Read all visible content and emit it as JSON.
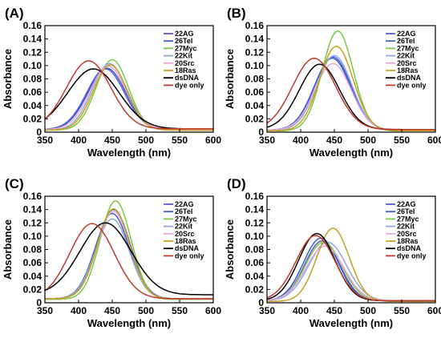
{
  "chart_data": [
    {
      "panel_label": "(A)",
      "type": "line",
      "xlabel": "Wavelength (nm)",
      "ylabel": "Absorbance",
      "xlim": [
        350,
        600
      ],
      "ylim": [
        0,
        0.16
      ],
      "xticks": [
        "350",
        "400",
        "450",
        "500",
        "550",
        "600"
      ],
      "yticks": [
        "0",
        "0.02",
        "0.04",
        "0.06",
        "0.08",
        "0.10",
        "0.12",
        "0.14",
        "0.16"
      ],
      "legend_position": "top-right",
      "series": [
        {
          "name": "22AG",
          "color": "#5b5bd6",
          "peak_x": 440,
          "peak_y": 0.091,
          "width": 28,
          "base_y": 0.004
        },
        {
          "name": "26Tel",
          "color": "#3a5fcd",
          "peak_x": 442,
          "peak_y": 0.092,
          "width": 28,
          "base_y": 0.004
        },
        {
          "name": "27Myc",
          "color": "#7ac943",
          "peak_x": 450,
          "peak_y": 0.106,
          "width": 24,
          "base_y": 0.003
        },
        {
          "name": "22Kit",
          "color": "#8fa8e0",
          "peak_x": 446,
          "peak_y": 0.1,
          "width": 26,
          "base_y": 0.003
        },
        {
          "name": "20Src",
          "color": "#e6a8d8",
          "peak_x": 444,
          "peak_y": 0.095,
          "width": 27,
          "base_y": 0.004
        },
        {
          "name": "18Ras",
          "color": "#c8a020",
          "peak_x": 447,
          "peak_y": 0.098,
          "width": 25,
          "base_y": 0.003
        },
        {
          "name": "dsDNA",
          "color": "#000000",
          "peak_x": 422,
          "peak_y": 0.09,
          "width": 38,
          "base_y": 0.005
        },
        {
          "name": "dye only",
          "color": "#c0392b",
          "peak_x": 415,
          "peak_y": 0.102,
          "width": 33,
          "base_y": 0.005
        }
      ]
    },
    {
      "panel_label": "(B)",
      "type": "line",
      "xlabel": "Wavelength (nm)",
      "ylabel": "Absorbance",
      "xlim": [
        350,
        600
      ],
      "ylim": [
        0,
        0.16
      ],
      "xticks": [
        "350",
        "400",
        "450",
        "500",
        "550",
        "600"
      ],
      "yticks": [
        "0",
        "0.02",
        "0.04",
        "0.06",
        "0.08",
        "0.10",
        "0.12",
        "0.14",
        "0.16"
      ],
      "legend_position": "top-right",
      "series": [
        {
          "name": "22AG",
          "color": "#5b5bd6",
          "peak_x": 448,
          "peak_y": 0.11,
          "width": 27,
          "base_y": 0.003
        },
        {
          "name": "26Tel",
          "color": "#3a5fcd",
          "peak_x": 447,
          "peak_y": 0.108,
          "width": 27,
          "base_y": 0.003
        },
        {
          "name": "27Myc",
          "color": "#7ac943",
          "peak_x": 455,
          "peak_y": 0.15,
          "width": 23,
          "base_y": 0.002
        },
        {
          "name": "22Kit",
          "color": "#8fa8e0",
          "peak_x": 450,
          "peak_y": 0.112,
          "width": 26,
          "base_y": 0.003
        },
        {
          "name": "20Src",
          "color": "#e6a8d8",
          "peak_x": 448,
          "peak_y": 0.1,
          "width": 27,
          "base_y": 0.003
        },
        {
          "name": "18Ras",
          "color": "#c8a020",
          "peak_x": 453,
          "peak_y": 0.127,
          "width": 25,
          "base_y": 0.002
        },
        {
          "name": "dsDNA",
          "color": "#000000",
          "peak_x": 428,
          "peak_y": 0.098,
          "width": 30,
          "base_y": 0.004
        },
        {
          "name": "dye only",
          "color": "#c0392b",
          "peak_x": 420,
          "peak_y": 0.107,
          "width": 32,
          "base_y": 0.004
        }
      ]
    },
    {
      "panel_label": "(C)",
      "type": "line",
      "xlabel": "Wavelength (nm)",
      "ylabel": "Absorbance",
      "xlim": [
        350,
        600
      ],
      "ylim": [
        0,
        0.16
      ],
      "xticks": [
        "350",
        "400",
        "450",
        "500",
        "550",
        "600"
      ],
      "yticks": [
        "0",
        "0.02",
        "0.04",
        "0.06",
        "0.08",
        "0.10",
        "0.12",
        "0.14",
        "0.16"
      ],
      "legend_position": "top-right",
      "series": [
        {
          "name": "22AG",
          "color": "#5b5bd6",
          "peak_x": 452,
          "peak_y": 0.134,
          "width": 25,
          "base_y": 0.006
        },
        {
          "name": "26Tel",
          "color": "#3a5fcd",
          "peak_x": 450,
          "peak_y": 0.128,
          "width": 25,
          "base_y": 0.006
        },
        {
          "name": "27Myc",
          "color": "#7ac943",
          "peak_x": 455,
          "peak_y": 0.148,
          "width": 23,
          "base_y": 0.005
        },
        {
          "name": "22Kit",
          "color": "#8fa8e0",
          "peak_x": 450,
          "peak_y": 0.12,
          "width": 25,
          "base_y": 0.006
        },
        {
          "name": "20Src",
          "color": "#e6a8d8",
          "peak_x": 452,
          "peak_y": 0.131,
          "width": 24,
          "base_y": 0.006
        },
        {
          "name": "18Ras",
          "color": "#c8a020",
          "peak_x": 452,
          "peak_y": 0.135,
          "width": 24,
          "base_y": 0.006
        },
        {
          "name": "dsDNA",
          "color": "#000000",
          "peak_x": 440,
          "peak_y": 0.108,
          "width": 38,
          "base_y": 0.012
        },
        {
          "name": "dye only",
          "color": "#c0392b",
          "peak_x": 420,
          "peak_y": 0.113,
          "width": 33,
          "base_y": 0.006
        }
      ]
    },
    {
      "panel_label": "(D)",
      "type": "line",
      "xlabel": "Wavelength (nm)",
      "ylabel": "Absorbance",
      "xlim": [
        350,
        600
      ],
      "ylim": [
        0,
        0.16
      ],
      "xticks": [
        "350",
        "400",
        "450",
        "500",
        "550",
        "600"
      ],
      "yticks": [
        "0",
        "0.02",
        "0.04",
        "0.06",
        "0.08",
        "0.10",
        "0.12",
        "0.14",
        "0.16"
      ],
      "legend_position": "top-right",
      "series": [
        {
          "name": "22AG",
          "color": "#5b5bd6",
          "peak_x": 432,
          "peak_y": 0.09,
          "width": 26,
          "base_y": 0.003
        },
        {
          "name": "26Tel",
          "color": "#3a5fcd",
          "peak_x": 430,
          "peak_y": 0.094,
          "width": 26,
          "base_y": 0.003
        },
        {
          "name": "27Myc",
          "color": "#7ac943",
          "peak_x": 434,
          "peak_y": 0.088,
          "width": 27,
          "base_y": 0.003
        },
        {
          "name": "22Kit",
          "color": "#8fa8e0",
          "peak_x": 440,
          "peak_y": 0.088,
          "width": 28,
          "base_y": 0.003
        },
        {
          "name": "20Src",
          "color": "#e6a8d8",
          "peak_x": 436,
          "peak_y": 0.082,
          "width": 28,
          "base_y": 0.003
        },
        {
          "name": "18Ras",
          "color": "#c8a020",
          "peak_x": 448,
          "peak_y": 0.11,
          "width": 24,
          "base_y": 0.002
        },
        {
          "name": "dsDNA",
          "color": "#000000",
          "peak_x": 424,
          "peak_y": 0.101,
          "width": 27,
          "base_y": 0.003
        },
        {
          "name": "dye only",
          "color": "#c0392b",
          "peak_x": 422,
          "peak_y": 0.098,
          "width": 29,
          "base_y": 0.003
        }
      ]
    }
  ]
}
